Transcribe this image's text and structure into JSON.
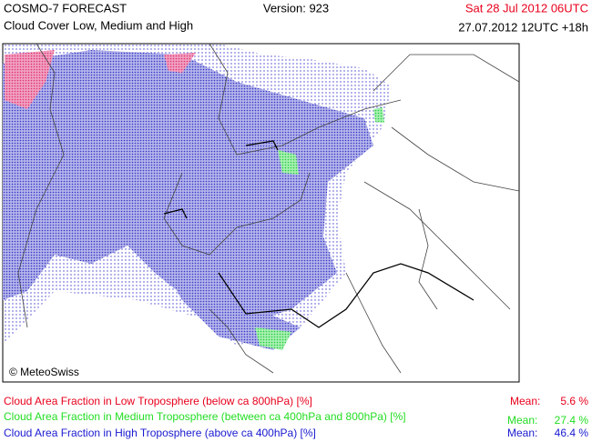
{
  "header": {
    "product": "COSMO-7 FORECAST",
    "subtitle": "Cloud Cover Low, Medium and High",
    "version": "Version: 923",
    "valid_time": "Sat 28 Jul 2012 06UTC",
    "run_time": "27.07.2012 12UTC +18h"
  },
  "map": {
    "credit": "© MeteoSwiss"
  },
  "legend": {
    "items": [
      {
        "label": "Cloud Area Fraction in Low Troposphere (below ca 800hPa) [%]",
        "mean_label": "Mean:",
        "mean": "5.6 %"
      },
      {
        "label": "Cloud Area Fraction in Medium Troposphere (between ca 400hPa and 800hPa) [%]",
        "mean_label": "Mean:",
        "mean": "27.4 %"
      },
      {
        "label": "Cloud Area Fraction in High Troposphere (above ca 400hPa) [%]",
        "mean_label": "Mean:",
        "mean": "46.4 %"
      }
    ]
  }
}
